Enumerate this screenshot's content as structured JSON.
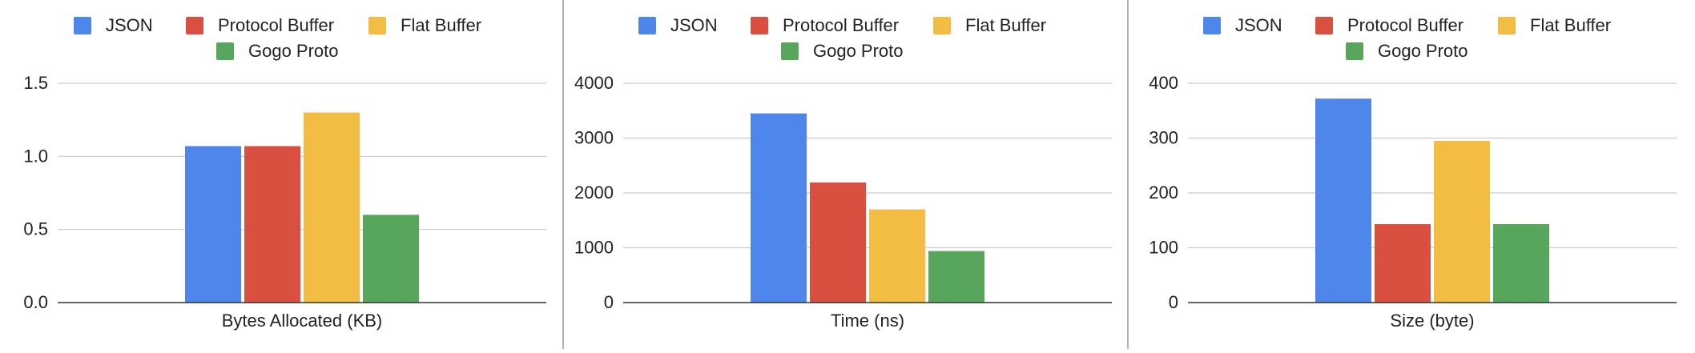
{
  "colors": {
    "json": "#4F86EC",
    "protobuf": "#D95040",
    "flatbuffer": "#F2BD42",
    "gogoproto": "#58A55C",
    "grid": "#CCCCCC",
    "axis": "#333333",
    "divider": "#999999"
  },
  "chart_data": [
    {
      "type": "bar",
      "categories": [
        "Bytes Allocated (KB)"
      ],
      "series": [
        {
          "name": "JSON",
          "values": [
            1.07
          ]
        },
        {
          "name": "Protocol Buffer",
          "values": [
            1.07
          ]
        },
        {
          "name": "Flat Buffer",
          "values": [
            1.3
          ]
        },
        {
          "name": "Gogo Proto",
          "values": [
            0.6
          ]
        }
      ],
      "xlabel": "Bytes Allocated (KB)",
      "ylabel": "",
      "ylim": [
        0,
        1.5
      ],
      "yticks": [
        "0.0",
        "0.5",
        "1.0",
        "1.5"
      ],
      "grid": true,
      "legend": "top"
    },
    {
      "type": "bar",
      "categories": [
        "Time (ns)"
      ],
      "series": [
        {
          "name": "JSON",
          "values": [
            3450
          ]
        },
        {
          "name": "Protocol Buffer",
          "values": [
            2190
          ]
        },
        {
          "name": "Flat Buffer",
          "values": [
            1700
          ]
        },
        {
          "name": "Gogo Proto",
          "values": [
            940
          ]
        }
      ],
      "xlabel": "Time (ns)",
      "ylabel": "",
      "ylim": [
        0,
        4000
      ],
      "yticks": [
        "0",
        "1000",
        "2000",
        "3000",
        "4000"
      ],
      "grid": true,
      "legend": "top"
    },
    {
      "type": "bar",
      "categories": [
        "Size (byte)"
      ],
      "series": [
        {
          "name": "JSON",
          "values": [
            372
          ]
        },
        {
          "name": "Protocol Buffer",
          "values": [
            143
          ]
        },
        {
          "name": "Flat Buffer",
          "values": [
            295
          ]
        },
        {
          "name": "Gogo Proto",
          "values": [
            143
          ]
        }
      ],
      "xlabel": "Size (byte)",
      "ylabel": "",
      "ylim": [
        0,
        400
      ],
      "yticks": [
        "0",
        "100",
        "200",
        "300",
        "400"
      ],
      "grid": true,
      "legend": "top"
    }
  ]
}
